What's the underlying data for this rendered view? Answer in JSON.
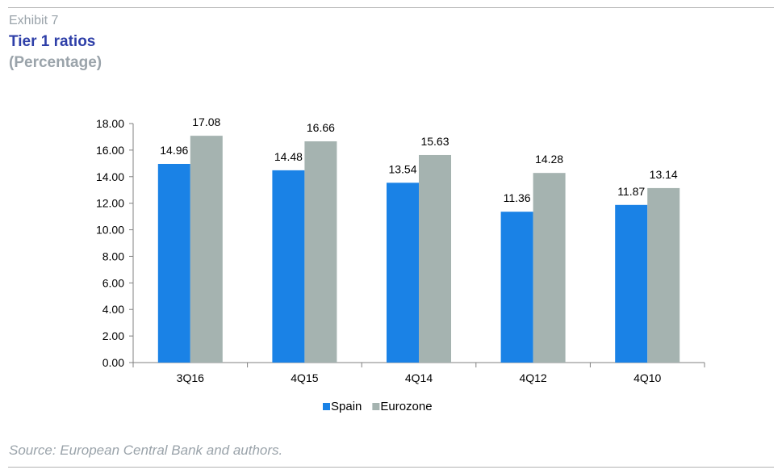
{
  "header": {
    "exhibit": "Exhibit 7",
    "title": "Tier 1 ratios",
    "subtitle": "(Percentage)"
  },
  "footer": {
    "source": "Source: European Central Bank and authors."
  },
  "colors": {
    "spain": "#1a82e6",
    "eurozone": "#a5b3b0",
    "title": "#2e3fa8",
    "muted": "#9aa3aa"
  },
  "chart_data": {
    "type": "bar",
    "title": "Tier 1 ratios",
    "subtitle": "(Percentage)",
    "categories": [
      "3Q16",
      "4Q15",
      "4Q14",
      "4Q12",
      "4Q10"
    ],
    "series": [
      {
        "name": "Spain",
        "values": [
          14.96,
          14.48,
          13.54,
          11.36,
          11.87
        ],
        "labels": [
          "14.96",
          "14.48",
          "13.54",
          "11.36",
          "11.87"
        ]
      },
      {
        "name": "Eurozone",
        "values": [
          17.08,
          16.66,
          15.63,
          14.28,
          13.14
        ],
        "labels": [
          "17.08",
          "16.66",
          "15.63",
          "14.28",
          "13.14"
        ]
      }
    ],
    "ylim": [
      0,
      18
    ],
    "yticks": [
      "0.00",
      "2.00",
      "4.00",
      "6.00",
      "8.00",
      "10.00",
      "12.00",
      "14.00",
      "16.00",
      "18.00"
    ],
    "xlabel": "",
    "ylabel": "",
    "grid": false,
    "legend": "bottom-center"
  }
}
